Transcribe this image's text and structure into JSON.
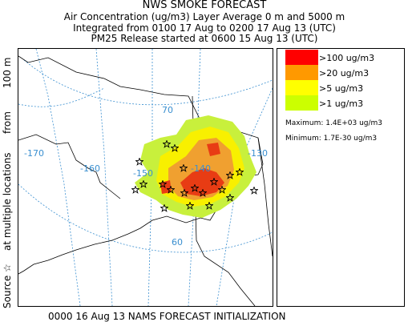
{
  "header": {
    "title": "NWS SMOKE FORECAST",
    "line1": "Air Concentration (ug/m3) Layer Average    0 m and  5000 m",
    "line2": "Integrated from 0100 17 Aug to 0200 17 Aug 13 (UTC)",
    "line3": "PM25 Release started at 0600 15 Aug 13 (UTC)"
  },
  "legend": [
    {
      "label": ">100 ug/m3",
      "color": "#ff0000"
    },
    {
      "label": ">20 ug/m3",
      "color": "#ff9900"
    },
    {
      "label": ">5 ug/m3",
      "color": "#ffff00"
    },
    {
      "label": ">1 ug/m3",
      "color": "#ccff00"
    }
  ],
  "stats": {
    "maximum": "Maximum: 1.4E+03 ug/m3",
    "minimum": "Minimum: 1.7E-30 ug/m3"
  },
  "side_label": [
    "Source ☆",
    "at multiple locations",
    "from",
    "100 m"
  ],
  "map_labels": [
    "-170",
    "-160",
    "-150",
    "-140",
    "-130",
    "70",
    "60"
  ],
  "footer": "0000 16 Aug 13 NAMS FORECAST INITIALIZATION"
}
